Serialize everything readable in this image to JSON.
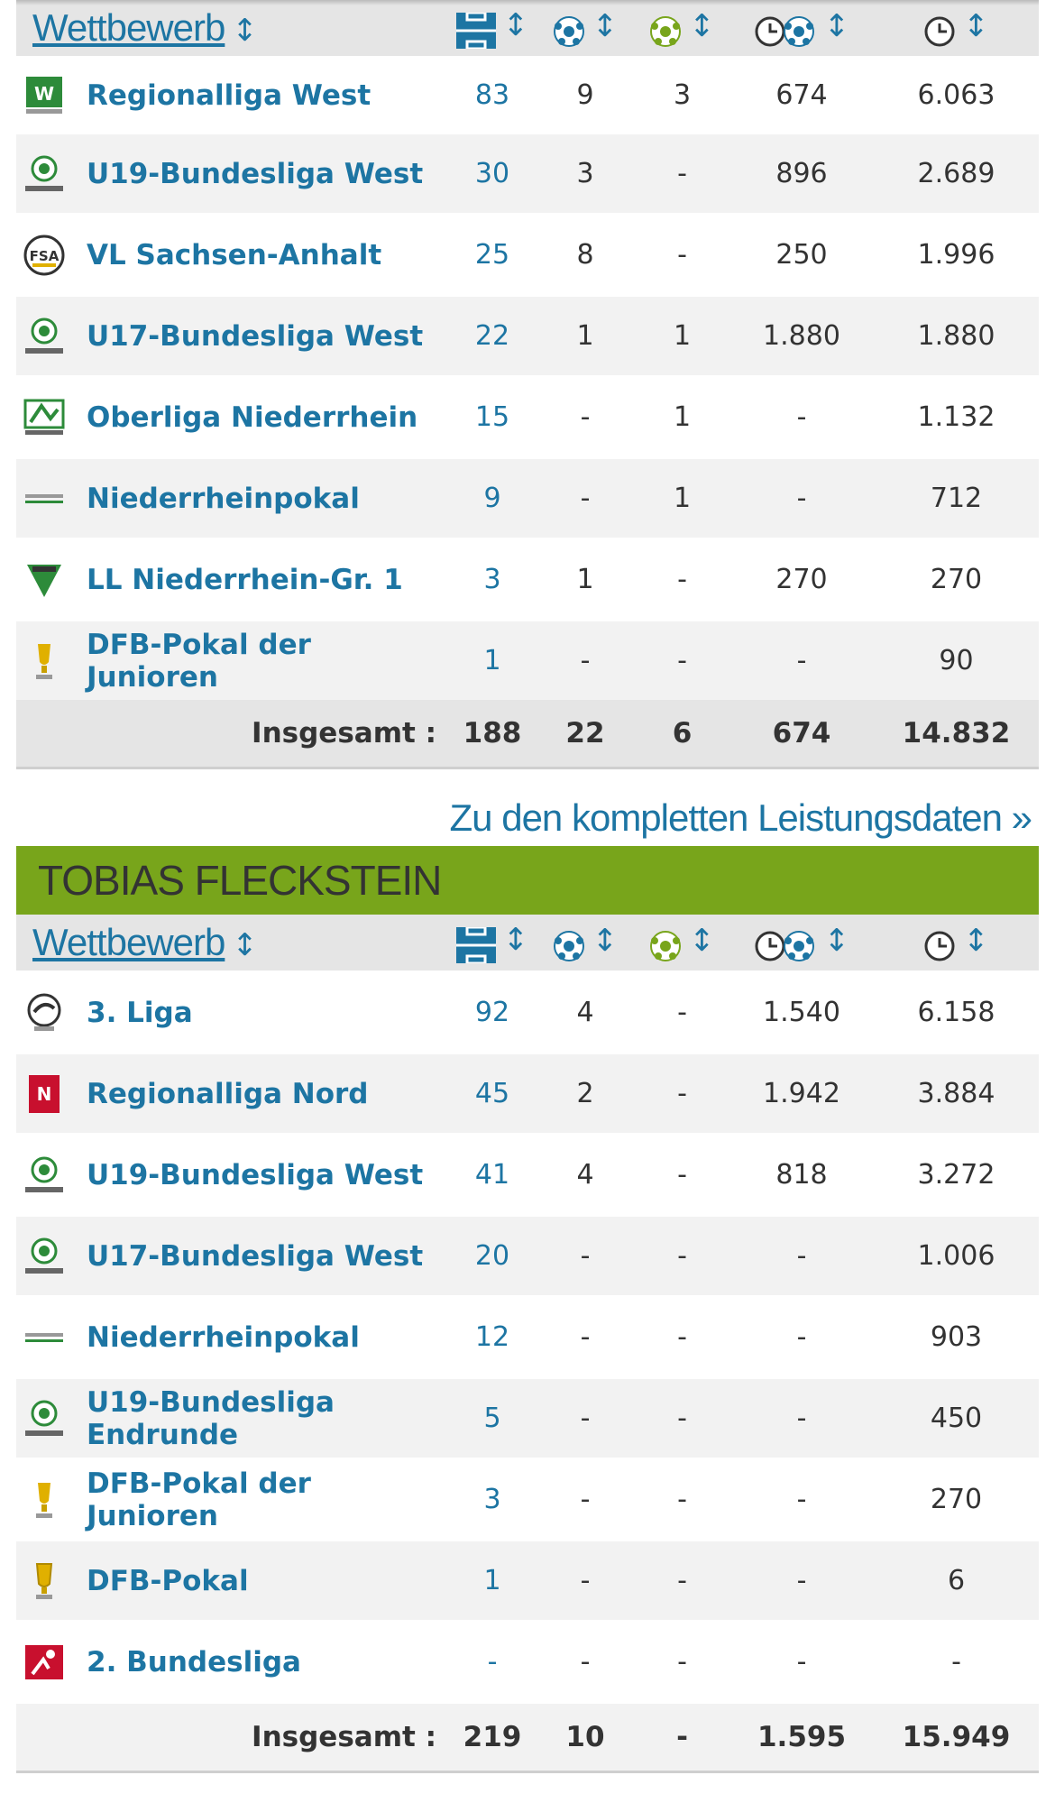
{
  "colors": {
    "accent": "#1d75a3",
    "section_green": "#78a51b",
    "header_bg": "#e5e5e5",
    "stripe": "#f2f2f2"
  },
  "icons": [
    "appearances-pitch-icon",
    "goals-ball-icon",
    "assists-ball-icon",
    "minutes-per-goal-icon",
    "minutes-clock-icon",
    "sort-arrows-icon"
  ],
  "table1": {
    "header": {
      "competition": "Wettbewerb",
      "sort": "↕"
    },
    "rows": [
      {
        "name": "Regionalliga West",
        "apps": "83",
        "goals": "9",
        "assists": "3",
        "mpg": "674",
        "mins": "6.063"
      },
      {
        "name": "U19-Bundesliga West",
        "apps": "30",
        "goals": "3",
        "assists": "-",
        "mpg": "896",
        "mins": "2.689"
      },
      {
        "name": "VL Sachsen-Anhalt",
        "apps": "25",
        "goals": "8",
        "assists": "-",
        "mpg": "250",
        "mins": "1.996"
      },
      {
        "name": "U17-Bundesliga West",
        "apps": "22",
        "goals": "1",
        "assists": "1",
        "mpg": "1.880",
        "mins": "1.880"
      },
      {
        "name": "Oberliga Niederrhein",
        "apps": "15",
        "goals": "-",
        "assists": "1",
        "mpg": "-",
        "mins": "1.132"
      },
      {
        "name": "Niederrheinpokal",
        "apps": "9",
        "goals": "-",
        "assists": "1",
        "mpg": "-",
        "mins": "712"
      },
      {
        "name": "LL Niederrhein-Gr. 1",
        "apps": "3",
        "goals": "1",
        "assists": "-",
        "mpg": "270",
        "mins": "270"
      },
      {
        "name": "DFB-Pokal der Junioren",
        "apps": "1",
        "goals": "-",
        "assists": "-",
        "mpg": "-",
        "mins": "90"
      }
    ],
    "total": {
      "label": "Insgesamt :",
      "apps": "188",
      "goals": "22",
      "assists": "6",
      "mpg": "674",
      "mins": "14.832"
    }
  },
  "more_link": "Zu den kompletten Leistungsdaten »",
  "section2_title": "TOBIAS FLECKSTEIN",
  "table2": {
    "header": {
      "competition": "Wettbewerb",
      "sort": "↕"
    },
    "rows": [
      {
        "name": "3. Liga",
        "apps": "92",
        "goals": "4",
        "assists": "-",
        "mpg": "1.540",
        "mins": "6.158"
      },
      {
        "name": "Regionalliga Nord",
        "apps": "45",
        "goals": "2",
        "assists": "-",
        "mpg": "1.942",
        "mins": "3.884"
      },
      {
        "name": "U19-Bundesliga West",
        "apps": "41",
        "goals": "4",
        "assists": "-",
        "mpg": "818",
        "mins": "3.272"
      },
      {
        "name": "U17-Bundesliga West",
        "apps": "20",
        "goals": "-",
        "assists": "-",
        "mpg": "-",
        "mins": "1.006"
      },
      {
        "name": "Niederrheinpokal",
        "apps": "12",
        "goals": "-",
        "assists": "-",
        "mpg": "-",
        "mins": "903"
      },
      {
        "name": "U19-Bundesliga Endrunde",
        "apps": "5",
        "goals": "-",
        "assists": "-",
        "mpg": "-",
        "mins": "450"
      },
      {
        "name": "DFB-Pokal der Junioren",
        "apps": "3",
        "goals": "-",
        "assists": "-",
        "mpg": "-",
        "mins": "270"
      },
      {
        "name": "DFB-Pokal",
        "apps": "1",
        "goals": "-",
        "assists": "-",
        "mpg": "-",
        "mins": "6"
      },
      {
        "name": "2. Bundesliga",
        "apps": "-",
        "goals": "-",
        "assists": "-",
        "mpg": "-",
        "mins": "-"
      }
    ],
    "total": {
      "label": "Insgesamt :",
      "apps": "219",
      "goals": "10",
      "assists": "-",
      "mpg": "1.595",
      "mins": "15.949"
    }
  }
}
